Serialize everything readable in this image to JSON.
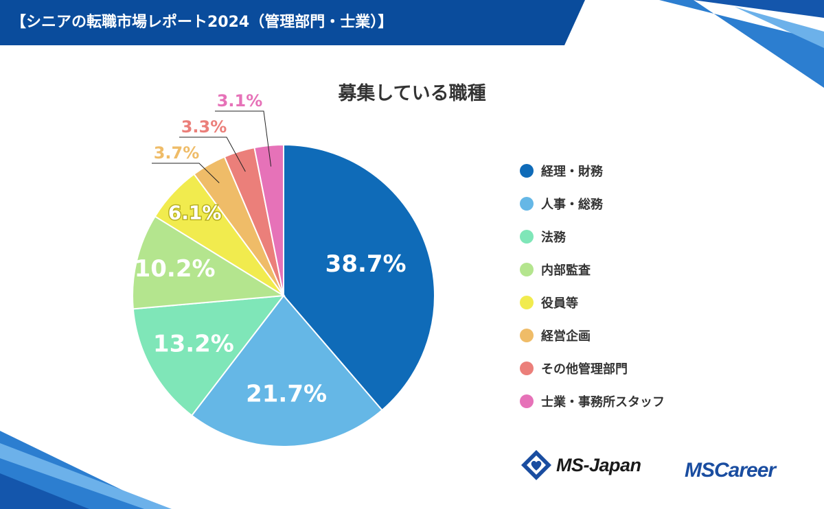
{
  "header": {
    "banner_title": "【シニアの転職市場レポート2024（管理部門・士業）】"
  },
  "colors": {
    "banner": "#0a4c9c",
    "banner_light": "#2d7fd0",
    "title_text": "#333333",
    "leader_line": "#222222",
    "logo_msc": "#1a4da0"
  },
  "chart_data": {
    "type": "pie",
    "title": "募集している職種",
    "unit": "%",
    "slices": [
      {
        "name": "経理・財務",
        "value": 38.7,
        "label": "38.7%",
        "color": "#0f6bb8",
        "label_color": "#ffffff"
      },
      {
        "name": "人事・総務",
        "value": 21.7,
        "label": "21.7%",
        "color": "#65b7e6",
        "label_color": "#ffffff"
      },
      {
        "name": "法務",
        "value": 13.2,
        "label": "13.2%",
        "color": "#7fe6b8",
        "label_color": "#ffffff"
      },
      {
        "name": "内部監査",
        "value": 10.2,
        "label": "10.2%",
        "color": "#b4e58e",
        "label_color": "#ffffff"
      },
      {
        "name": "役員等",
        "value": 6.1,
        "label": "6.1%",
        "color": "#f1eb4e",
        "label_color": "#ffffff"
      },
      {
        "name": "経営企画",
        "value": 3.7,
        "label": "3.7%",
        "color": "#efbc68",
        "label_color": "#efbc68"
      },
      {
        "name": "その他管理部門",
        "value": 3.3,
        "label": "3.3%",
        "color": "#eb7f7a",
        "label_color": "#eb7f7a"
      },
      {
        "name": "士業・事務所スタッフ",
        "value": 3.1,
        "label": "3.1%",
        "color": "#e672b8",
        "label_color": "#e672b8"
      }
    ],
    "start": "12 o'clock",
    "direction": "clockwise",
    "legend_position": "right"
  },
  "logos": {
    "ms_japan": "MS-Japan",
    "ms_career": "MSCareer"
  }
}
